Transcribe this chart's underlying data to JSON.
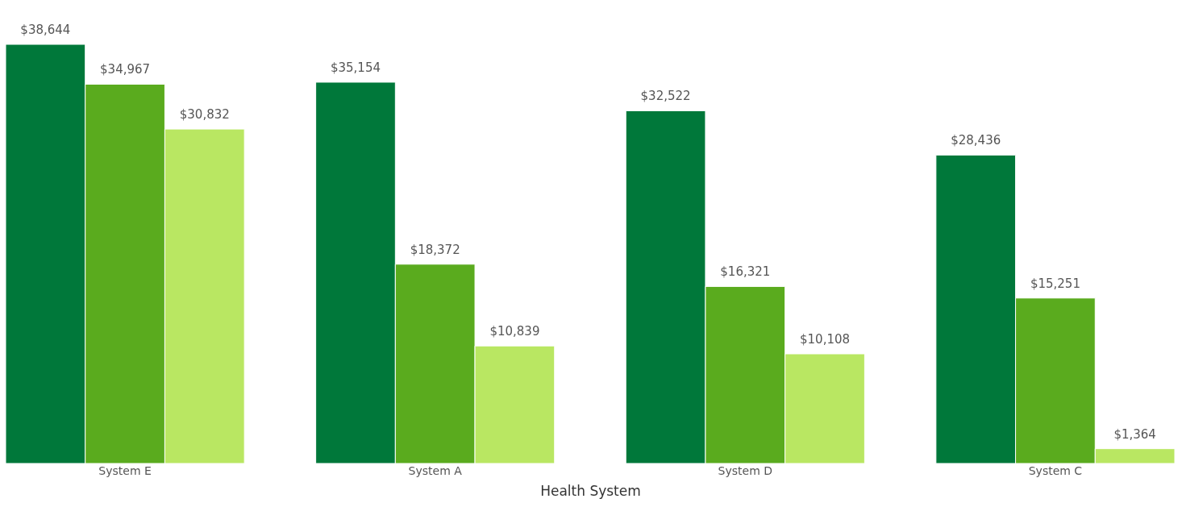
{
  "chart_data": {
    "type": "bar",
    "xlabel": "Health System",
    "categories": [
      "System E",
      "System A",
      "System D",
      "System C"
    ],
    "series": [
      {
        "color": "#00783a",
        "values": [
          38644,
          35154,
          32522,
          28436
        ],
        "value_labels": [
          "$38,644",
          "$35,154",
          "$32,522",
          "$28,436"
        ]
      },
      {
        "color": "#5aab1e",
        "values": [
          34967,
          18372,
          16321,
          15251
        ],
        "value_labels": [
          "$34,967",
          "$18,372",
          "$16,321",
          "$15,251"
        ]
      },
      {
        "color": "#b9e762",
        "values": [
          30832,
          10839,
          10108,
          1364
        ],
        "value_labels": [
          "$30,832",
          "$10,839",
          "$10,108",
          "$1,364"
        ]
      }
    ],
    "tick_labels": "x",
    "grid": false,
    "legend": false
  }
}
